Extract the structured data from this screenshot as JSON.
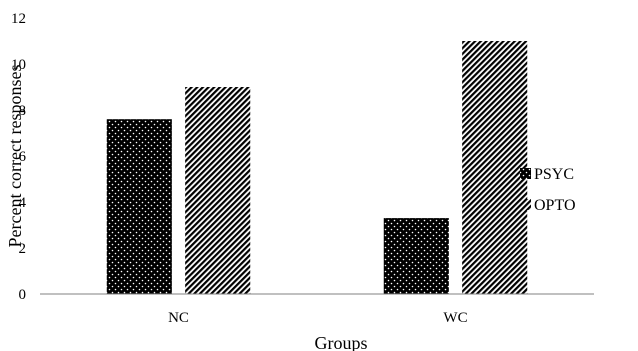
{
  "chart_data": {
    "type": "bar",
    "title": "",
    "xlabel": "Groups",
    "ylabel": "Percent correct responses",
    "categories": [
      "NC",
      "WC"
    ],
    "series": [
      {
        "name": "PSYC",
        "values": [
          7.6,
          3.3
        ],
        "pattern": "dots-on-black"
      },
      {
        "name": "OPTO",
        "values": [
          9.0,
          11.0
        ],
        "pattern": "diagonal-hatch"
      }
    ],
    "ylim": [
      0,
      12
    ],
    "yticks": [
      "0",
      "2",
      "4",
      "6",
      "8",
      "10",
      "12"
    ],
    "grid": false,
    "legend": "right",
    "colors": {
      "bar": "#000000",
      "axis": "#808080",
      "text": "#000000"
    }
  }
}
